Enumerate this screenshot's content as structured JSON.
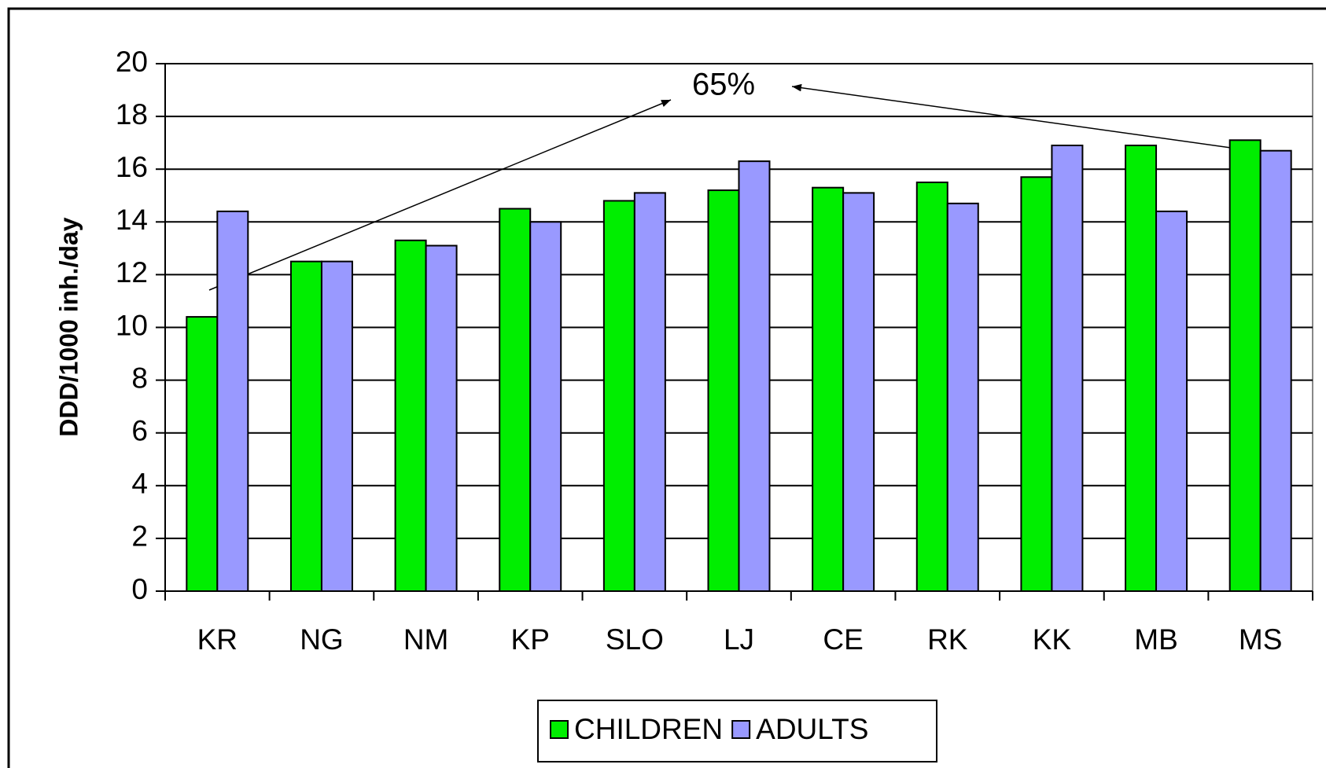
{
  "chart_data": {
    "type": "bar",
    "y_label": "DDD/1000 inh./day",
    "annotation": "65%",
    "categories": [
      "KR",
      "NG",
      "NM",
      "KP",
      "SLO",
      "LJ",
      "CE",
      "RK",
      "KK",
      "MB",
      "MS"
    ],
    "series": [
      {
        "name": "CHILDREN",
        "color": "#00ee00",
        "values": [
          10.4,
          12.5,
          13.3,
          14.5,
          14.8,
          15.2,
          15.3,
          15.5,
          15.7,
          16.9,
          17.1
        ]
      },
      {
        "name": "ADULTS",
        "color": "#9999ff",
        "values": [
          14.4,
          12.5,
          13.1,
          14.0,
          15.1,
          16.3,
          15.1,
          14.7,
          16.9,
          14.4,
          16.7
        ]
      }
    ],
    "ylim": [
      0,
      20
    ],
    "yticks": [
      0,
      2,
      4,
      6,
      8,
      10,
      12,
      14,
      16,
      18,
      20
    ],
    "grid": true,
    "legend": "bottom"
  }
}
